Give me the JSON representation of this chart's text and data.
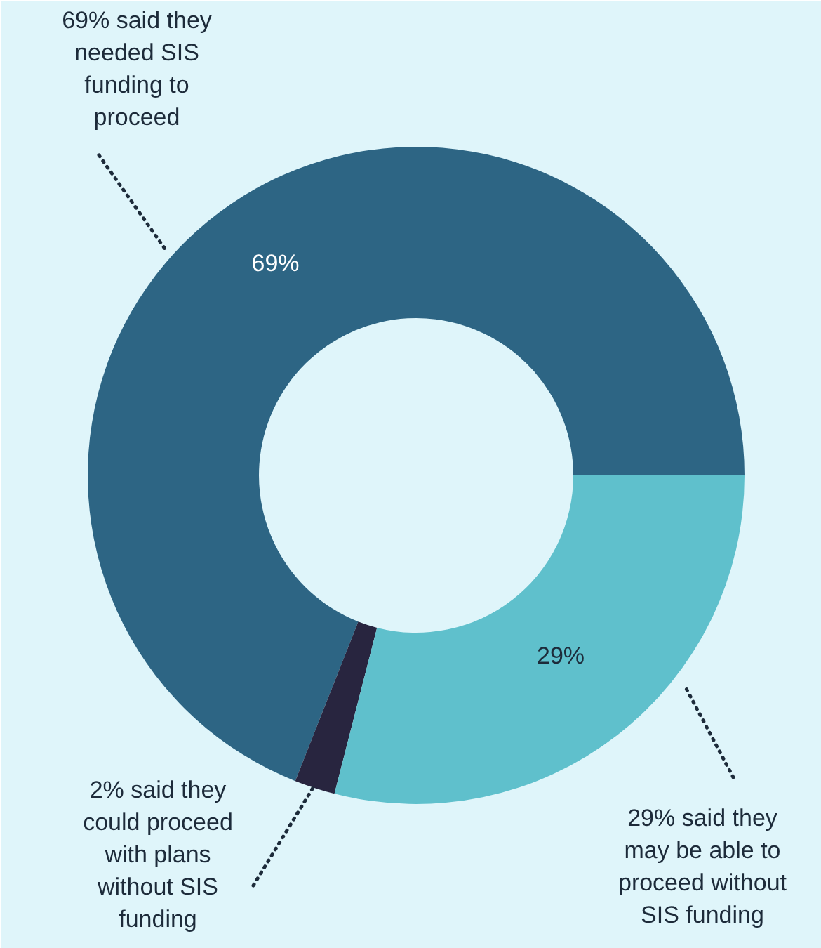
{
  "chart_data": {
    "type": "donut",
    "categories": [
      "69% said they needed SIS funding to proceed",
      "2% said they could proceed with plans without SIS funding",
      "29% said they may be able to proceed without SIS funding"
    ],
    "values": [
      69,
      2,
      29
    ],
    "colors": [
      "#2d6584",
      "#28253f",
      "#5fc0cc"
    ],
    "value_labels": [
      "69%",
      null,
      "29%"
    ]
  }
}
